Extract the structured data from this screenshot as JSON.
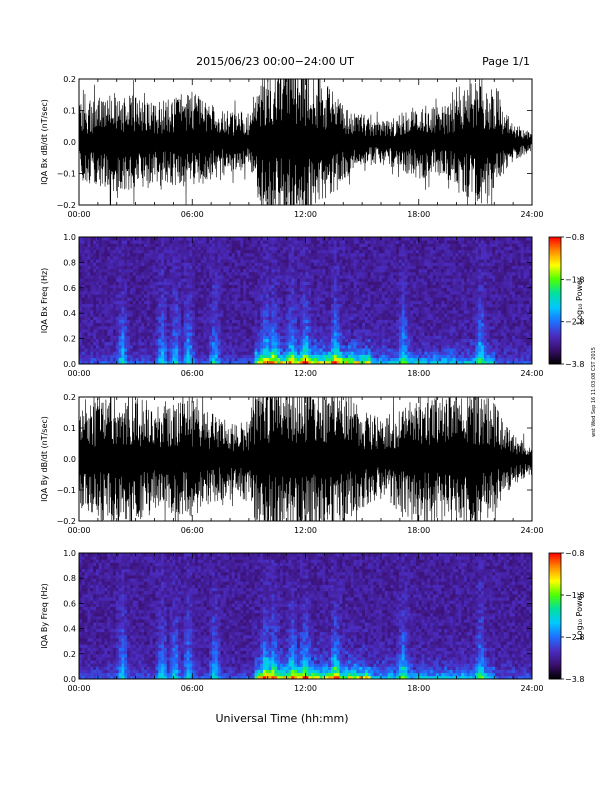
{
  "header": {
    "title": "2015/06/23  00:00−24:00 UT",
    "page_label": "Page 1/1"
  },
  "footer": {
    "x_axis_title": "Universal Time (hh:mm)",
    "side_stamp": "wst Wed Sep 16 11:03:08 CST 2015"
  },
  "colors": {
    "signal": "#000000",
    "colormap": [
      "#000000",
      "#3a0f6e",
      "#4b2cc0",
      "#1f6fff",
      "#00c8ff",
      "#00e0a0",
      "#4dff00",
      "#ffff00",
      "#ff8c00",
      "#ff0000"
    ]
  },
  "chart_data": [
    {
      "type": "line",
      "ylabel": "IQA Bx dB/dt (nT/sec)",
      "xlim": [
        "00:00",
        "24:00"
      ],
      "ylim": [
        -0.2,
        0.2
      ],
      "x_ticks": [
        "00:00",
        "06:00",
        "12:00",
        "18:00",
        "24:00"
      ],
      "y_ticks": [
        "0.2",
        "0.1",
        "0.0",
        "−0.1",
        "−0.2"
      ],
      "envelope": {
        "hours": [
          0,
          1,
          2,
          3,
          4,
          5,
          6,
          7,
          8,
          9,
          9.5,
          10,
          11,
          12,
          13,
          14,
          15,
          16,
          17,
          18,
          19,
          20,
          21,
          22,
          23,
          24
        ],
        "amplitude": [
          0.12,
          0.14,
          0.16,
          0.15,
          0.13,
          0.14,
          0.16,
          0.12,
          0.1,
          0.1,
          0.22,
          0.25,
          0.25,
          0.25,
          0.2,
          0.12,
          0.08,
          0.07,
          0.09,
          0.12,
          0.11,
          0.13,
          0.22,
          0.16,
          0.06,
          0.03
        ]
      }
    },
    {
      "type": "heatmap",
      "ylabel": "IQA Bx Freq (Hz)",
      "xlim": [
        "00:00",
        "24:00"
      ],
      "ylim": [
        0.0,
        1.0
      ],
      "x_ticks": [
        "00:00",
        "06:00",
        "12:00",
        "18:00",
        "24:00"
      ],
      "y_ticks": [
        "1.0",
        "0.8",
        "0.6",
        "0.4",
        "0.2",
        "0.0"
      ],
      "colorbar": {
        "label": "Log₁₀ Power",
        "range": [
          -3.8,
          -0.8
        ],
        "ticks": [
          "−0.8",
          "−1.8",
          "−2.8",
          "−3.8"
        ]
      },
      "bursts_hours": [
        2.3,
        4.4,
        5.1,
        5.8,
        7.2,
        9.9,
        10.3,
        11.3,
        12.0,
        13.6,
        17.2,
        21.3
      ]
    },
    {
      "type": "line",
      "ylabel": "IQA By dB/dt (nT/sec)",
      "xlim": [
        "00:00",
        "24:00"
      ],
      "ylim": [
        -0.2,
        0.2
      ],
      "x_ticks": [
        "00:00",
        "06:00",
        "12:00",
        "18:00",
        "24:00"
      ],
      "y_ticks": [
        "0.2",
        "0.1",
        "0.0",
        "−0.1",
        "−0.2"
      ],
      "envelope": {
        "hours": [
          0,
          1,
          2,
          3,
          4,
          5,
          6,
          7,
          8,
          9,
          9.5,
          10,
          11,
          12,
          13,
          14,
          15,
          16,
          17,
          18,
          19,
          20,
          21,
          22,
          23,
          24
        ],
        "amplitude": [
          0.16,
          0.2,
          0.22,
          0.21,
          0.18,
          0.18,
          0.2,
          0.15,
          0.12,
          0.14,
          0.25,
          0.25,
          0.25,
          0.25,
          0.25,
          0.22,
          0.16,
          0.13,
          0.17,
          0.22,
          0.2,
          0.21,
          0.24,
          0.18,
          0.08,
          0.05
        ]
      }
    },
    {
      "type": "heatmap",
      "ylabel": "IQA By Freq (Hz)",
      "xlim": [
        "00:00",
        "24:00"
      ],
      "ylim": [
        0.0,
        1.0
      ],
      "x_ticks": [
        "00:00",
        "06:00",
        "12:00",
        "18:00",
        "24:00"
      ],
      "y_ticks": [
        "1.0",
        "0.8",
        "0.6",
        "0.4",
        "0.2",
        "0.0"
      ],
      "colorbar": {
        "label": "Log₁₀ Power",
        "range": [
          -3.8,
          -0.8
        ],
        "ticks": [
          "−0.8",
          "−1.8",
          "−2.8",
          "−3.8"
        ]
      },
      "bursts_hours": [
        2.3,
        4.4,
        5.1,
        5.8,
        7.2,
        9.9,
        10.3,
        11.3,
        12.0,
        13.6,
        17.2,
        21.3
      ]
    }
  ]
}
